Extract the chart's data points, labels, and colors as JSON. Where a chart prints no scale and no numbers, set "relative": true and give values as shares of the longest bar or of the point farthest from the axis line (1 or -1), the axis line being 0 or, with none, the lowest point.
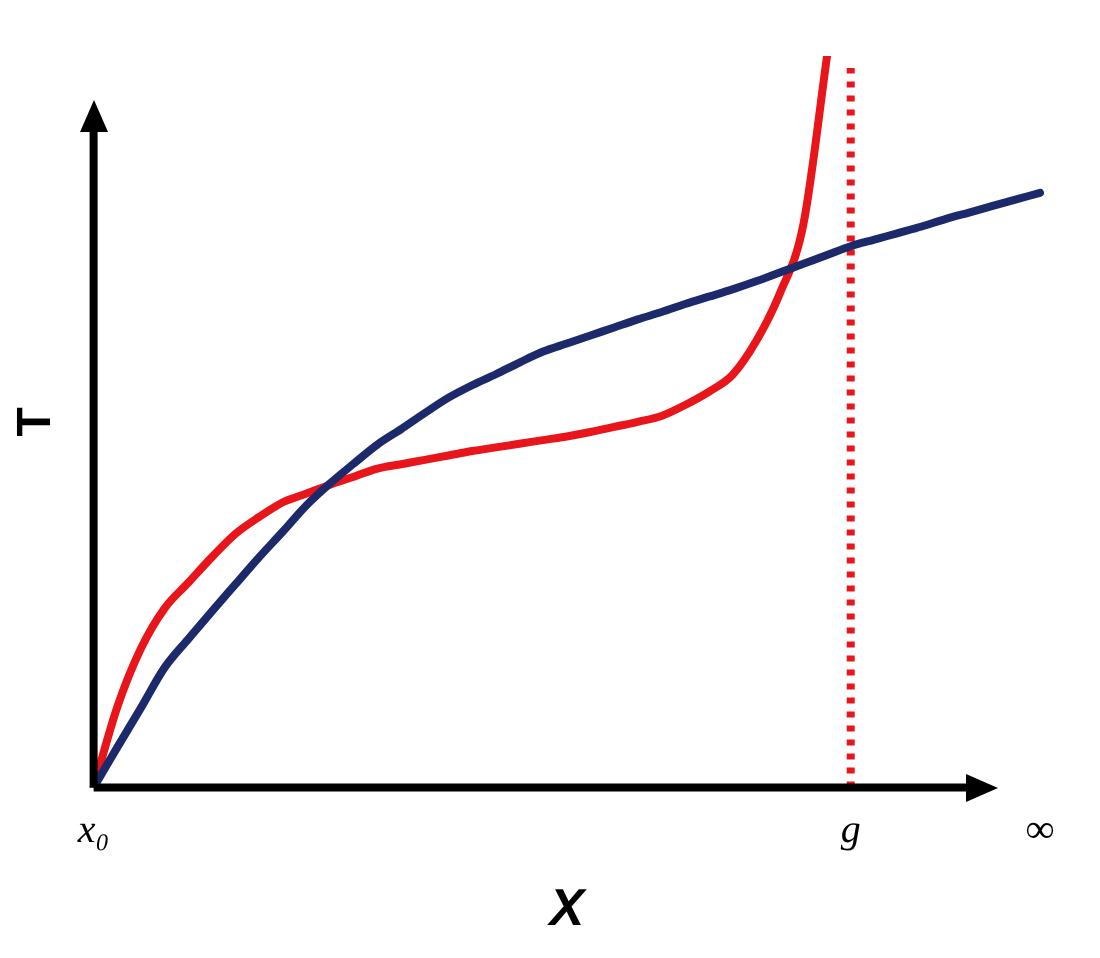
{
  "chart_data": {
    "type": "line",
    "relative": true,
    "xlabel": "X",
    "ylabel": "T",
    "categories": [
      "x₀",
      null,
      null,
      null,
      null,
      null,
      null,
      null,
      null,
      null,
      null,
      null,
      null,
      null,
      null,
      null,
      null,
      null,
      null,
      null,
      null,
      null,
      null,
      null,
      null,
      null,
      null,
      null,
      null,
      null,
      null,
      null,
      "g",
      null,
      null,
      null,
      null,
      null,
      null,
      null,
      "∞"
    ],
    "grid": false,
    "legend": false,
    "marker": "none",
    "line_style": "solid",
    "series": [
      {
        "color": "#1c2a6b",
        "values": [
          0,
          0.055,
          0.109,
          0.164,
          0.203,
          0.241,
          0.278,
          0.315,
          0.35,
          0.386,
          0.416,
          0.443,
          0.469,
          0.49,
          0.512,
          0.533,
          0.55,
          0.565,
          0.581,
          0.596,
          0.607,
          0.618,
          0.629,
          0.64,
          0.65,
          0.661,
          0.671,
          0.681,
          0.692,
          0.704,
          0.716,
          0.728,
          0.74,
          0.749,
          0.758,
          0.767,
          0.777,
          0.786,
          0.795,
          0.804,
          0.813
        ]
      },
      {
        "color": "#e8161b",
        "values": [
          0,
          0.11,
          0.19,
          0.245,
          0.28,
          0.315,
          0.347,
          0.37,
          0.39,
          0.402,
          0.414,
          0.425,
          0.436,
          0.442,
          0.448,
          0.454,
          0.46,
          0.465,
          0.47,
          0.475,
          0.48,
          0.486,
          0.493,
          0.5,
          0.508,
          0.523,
          0.541,
          0.564,
          0.61,
          0.675,
          0.77,
          1.0,
          null,
          null,
          null,
          null,
          null,
          null,
          null,
          null,
          null
        ]
      }
    ],
    "ref_lines": [
      {
        "axis": "x",
        "value": "g",
        "color": "#e8161b",
        "line_style": "dotted"
      }
    ]
  }
}
